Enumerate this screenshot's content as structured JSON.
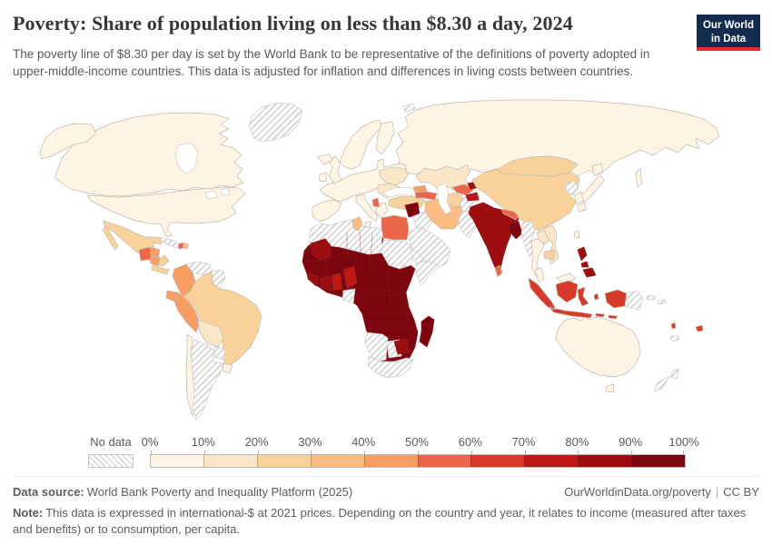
{
  "header": {
    "title": "Poverty: Share of population living on less than $8.30 a day, 2024",
    "subtitle": "The poverty line of $8.30 per day is set by the World Bank to be representative of the definitions of poverty adopted in upper-middle-income countries. This data is adjusted for inflation and differences in living costs between countries.",
    "logo": {
      "line1": "Our World",
      "line2": "in Data",
      "bg": "#132c4e",
      "accent": "#e2332b",
      "text_color": "#ffffff"
    }
  },
  "legend": {
    "no_data_label": "No data",
    "tick_labels": [
      "0%",
      "10%",
      "20%",
      "30%",
      "40%",
      "50%",
      "60%",
      "70%",
      "80%",
      "90%",
      "100%"
    ],
    "bin_labels": [
      "0-10%",
      "10-20%",
      "20-30%",
      "30-40%",
      "40-50%",
      "50-60%",
      "60-70%",
      "70-80%",
      "80-90%",
      "90-100%"
    ],
    "bin_colors": [
      "#FDF4E4",
      "#FAE7C8",
      "#F8D29A",
      "#FBBC84",
      "#F79C63",
      "#EB654A",
      "#D63A2B",
      "#BE1917",
      "#9C0D10",
      "#7D050F"
    ]
  },
  "map": {
    "ocean_color": "#ffffff",
    "border_color": "#c2b9b0",
    "dark_border": "#8a241e",
    "no_data_border": "#cccccc",
    "no_data_stripe_color": "#d8d8d8",
    "regions": {
      "greenland": {
        "label": "Greenland",
        "bin": "nd"
      },
      "canada": {
        "label": "Canada",
        "bin": 0
      },
      "united_states": {
        "label": "United States",
        "bin": 0
      },
      "mexico": {
        "label": "Mexico",
        "bin": 2
      },
      "guatemala": {
        "label": "Guatemala",
        "bin": 5
      },
      "honduras": {
        "label": "Honduras",
        "bin": 4
      },
      "nicaragua": {
        "label": "Nicaragua",
        "bin": 4
      },
      "costa_rica_panama": {
        "label": "Costa Rica & Panama",
        "bin": 2
      },
      "cuba": {
        "label": "Cuba",
        "bin": "nd"
      },
      "haiti": {
        "label": "Haiti",
        "bin": 5
      },
      "dominican_republic": {
        "label": "Dominican Republic",
        "bin": 3
      },
      "venezuela": {
        "label": "Venezuela",
        "bin": "nd"
      },
      "guyana_suriname": {
        "label": "Guyana & Suriname",
        "bin": "nd"
      },
      "colombia": {
        "label": "Colombia",
        "bin": 4
      },
      "ecuador": {
        "label": "Ecuador",
        "bin": 4
      },
      "peru": {
        "label": "Peru",
        "bin": 4
      },
      "brazil": {
        "label": "Brazil",
        "bin": 2
      },
      "bolivia": {
        "label": "Bolivia",
        "bin": 1
      },
      "paraguay": {
        "label": "Paraguay",
        "bin": "nd"
      },
      "chile": {
        "label": "Chile",
        "bin": 0
      },
      "argentina": {
        "label": "Argentina",
        "bin": "nd"
      },
      "uruguay": {
        "label": "Uruguay",
        "bin": 0
      },
      "iceland": {
        "label": "Iceland",
        "bin": 0
      },
      "united_kingdom": {
        "label": "United Kingdom",
        "bin": 0
      },
      "ireland": {
        "label": "Ireland",
        "bin": 0
      },
      "norway_sweden": {
        "label": "Norway & Sweden",
        "bin": 0
      },
      "finland": {
        "label": "Finland",
        "bin": 0
      },
      "western_europe": {
        "label": "Western & Central Europe",
        "bin": 0
      },
      "spain_portugal": {
        "label": "Spain & Portugal",
        "bin": 0
      },
      "italy": {
        "label": "Italy",
        "bin": 0
      },
      "greece": {
        "label": "Greece",
        "bin": 0
      },
      "ukraine": {
        "label": "Ukraine",
        "bin": 1
      },
      "romania_bulgaria": {
        "label": "Romania & Bulgaria",
        "bin": 1
      },
      "albania_north_macedonia": {
        "label": "Albania & North Macedonia",
        "bin": 5
      },
      "turkey": {
        "label": "Turkey",
        "bin": 2
      },
      "svalbard": {
        "label": "Svalbard",
        "bin": "nd"
      },
      "russia": {
        "label": "Russia",
        "bin": 0
      },
      "kazakhstan": {
        "label": "Kazakhstan",
        "bin": 1
      },
      "turkmenistan": {
        "label": "Turkmenistan",
        "bin": 2
      },
      "uzbekistan": {
        "label": "Uzbekistan",
        "bin": 5
      },
      "kyrgyzstan": {
        "label": "Kyrgyzstan",
        "bin": 8
      },
      "tajikistan": {
        "label": "Tajikistan",
        "bin": 7
      },
      "georgia": {
        "label": "Georgia",
        "bin": 4
      },
      "armenia_azerbaijan": {
        "label": "Armenia & Azerbaijan",
        "bin": 5
      },
      "syria": {
        "label": "Syria",
        "bin": 9
      },
      "iraq": {
        "label": "Iraq",
        "bin": "nd"
      },
      "jordan_israel": {
        "label": "Jordan, Israel & Lebanon",
        "bin": "nd"
      },
      "saudi_arabia": {
        "label": "Saudi Arabia, Yemen & Oman",
        "bin": "nd"
      },
      "iran": {
        "label": "Iran",
        "bin": 3
      },
      "afghanistan": {
        "label": "Afghanistan",
        "bin": "nd"
      },
      "pakistan": {
        "label": "Pakistan",
        "bin": "nd"
      },
      "north_africa": {
        "label": "Morocco, Algeria & Libya",
        "bin": "nd"
      },
      "tunisia": {
        "label": "Tunisia",
        "bin": 3
      },
      "egypt": {
        "label": "Egypt",
        "bin": 5
      },
      "sudan": {
        "label": "Sudan",
        "bin": "nd"
      },
      "eritrea_djibouti": {
        "label": "Eritrea & Djibouti",
        "bin": "nd"
      },
      "somalia": {
        "label": "Somalia",
        "bin": "nd"
      },
      "mauritania": {
        "label": "Mauritania",
        "bin": 8
      },
      "sub_saharan_africa": {
        "label": "Sahel, West, Central & East Africa (Mali, Niger, Chad, Nigeria, DR Congo, Ethiopia, Kenya, Tanzania, Angola, Zambia, Mozambique and neighbours)",
        "bin": 9
      },
      "sierra_leone_liberia": {
        "label": "Sierra Leone & Liberia",
        "bin": 8
      },
      "cote_divoire": {
        "label": "Côte d'Ivoire",
        "bin": 8
      },
      "ghana": {
        "label": "Ghana",
        "bin": 7
      },
      "cameroon": {
        "label": "Cameroon",
        "bin": 7
      },
      "gabon": {
        "label": "Gabon",
        "bin": "nd"
      },
      "zimbabwe": {
        "label": "Zimbabwe",
        "bin": 8
      },
      "namibia": {
        "label": "Namibia",
        "bin": "nd"
      },
      "botswana": {
        "label": "Botswana",
        "bin": "nd"
      },
      "south_africa": {
        "label": "South Africa",
        "bin": "nd"
      },
      "madagascar": {
        "label": "Madagascar",
        "bin": 9
      },
      "mongolia": {
        "label": "Mongolia",
        "bin": 2
      },
      "china": {
        "label": "China",
        "bin": 2
      },
      "india": {
        "label": "India",
        "bin": 8
      },
      "nepal": {
        "label": "Nepal",
        "bin": 5
      },
      "bangladesh": {
        "label": "Bangladesh",
        "bin": 9
      },
      "sri_lanka": {
        "label": "Sri Lanka",
        "bin": 5
      },
      "myanmar": {
        "label": "Myanmar",
        "bin": "nd"
      },
      "thailand": {
        "label": "Thailand",
        "bin": 0
      },
      "laos": {
        "label": "Laos",
        "bin": 1
      },
      "vietnam": {
        "label": "Vietnam",
        "bin": 1
      },
      "cambodia": {
        "label": "Cambodia",
        "bin": 2
      },
      "north_korea": {
        "label": "North Korea",
        "bin": "nd"
      },
      "south_korea": {
        "label": "South Korea",
        "bin": 0
      },
      "japan": {
        "label": "Japan",
        "bin": 0
      },
      "taiwan": {
        "label": "Taiwan",
        "bin": 0
      },
      "philippines": {
        "label": "Philippines",
        "bin": 8
      },
      "malaysia": {
        "label": "Malaysia",
        "bin": 0
      },
      "indonesia": {
        "label": "Indonesia",
        "bin": 6
      },
      "papua_new_guinea": {
        "label": "Papua New Guinea",
        "bin": "nd"
      },
      "solomon_islands": {
        "label": "Solomon Islands",
        "bin": "nd"
      },
      "vanuatu_fiji": {
        "label": "Vanuatu & Fiji",
        "bin": 6
      },
      "new_caledonia": {
        "label": "New Caledonia",
        "bin": "nd"
      },
      "australia": {
        "label": "Australia",
        "bin": 0
      },
      "new_zealand": {
        "label": "New Zealand",
        "bin": "nd"
      }
    }
  },
  "footer": {
    "data_source_label": "Data source:",
    "data_source_value": "World Bank Poverty and Inequality Platform (2025)",
    "link": "OurWorldinData.org/poverty",
    "separator": "|",
    "license": "CC BY",
    "note_label": "Note:",
    "note_text": "This data is expressed in international-$ at 2021 prices. Depending on the country and year, it relates to income (measured after taxes and benefits) or to consumption, per capita."
  },
  "chart_data": {
    "type": "heatmap",
    "variant": "choropleth_world_map",
    "title": "Poverty: Share of population living on less than $8.30 a day, 2024",
    "unit": "% of population living below $8.30/day",
    "year": 2024,
    "legend_position": "bottom",
    "bins": [
      "0-10%",
      "10-20%",
      "20-30%",
      "30-40%",
      "40-50%",
      "50-60%",
      "60-70%",
      "70-80%",
      "80-90%",
      "90-100%",
      "No data"
    ],
    "bin_colors": [
      "#FDF4E4",
      "#FAE7C8",
      "#F8D29A",
      "#FBBC84",
      "#F79C63",
      "#EB654A",
      "#D63A2B",
      "#BE1917",
      "#9C0D10",
      "#7D050F",
      "hatched"
    ],
    "values_by_country": {
      "United States": "0-10%",
      "Canada": "0-10%",
      "Greenland": "No data",
      "Mexico": "20-30%",
      "Guatemala": "50-60%",
      "Honduras": "40-50%",
      "Nicaragua": "40-50%",
      "Costa Rica": "20-30%",
      "Panama": "20-30%",
      "Cuba": "No data",
      "Haiti": "50-60%",
      "Dominican Republic": "30-40%",
      "Colombia": "40-50%",
      "Venezuela": "No data",
      "Guyana": "No data",
      "Suriname": "No data",
      "Ecuador": "40-50%",
      "Peru": "40-50%",
      "Brazil": "20-30%",
      "Bolivia": "10-20%",
      "Paraguay": "No data",
      "Chile": "0-10%",
      "Argentina": "No data",
      "Uruguay": "0-10%",
      "Iceland": "0-10%",
      "United Kingdom": "0-10%",
      "Ireland": "0-10%",
      "Norway": "0-10%",
      "Sweden": "0-10%",
      "Finland": "0-10%",
      "France": "0-10%",
      "Germany": "0-10%",
      "Poland": "0-10%",
      "Spain": "0-10%",
      "Portugal": "0-10%",
      "Italy": "0-10%",
      "Greece": "0-10%",
      "Ukraine": "10-20%",
      "Romania": "10-20%",
      "Bulgaria": "10-20%",
      "Albania": "50-60%",
      "North Macedonia": "50-60%",
      "Turkey": "20-30%",
      "Russia": "0-10%",
      "Kazakhstan": "10-20%",
      "Turkmenistan": "20-30%",
      "Uzbekistan": "50-60%",
      "Kyrgyzstan": "80-90%",
      "Tajikistan": "70-80%",
      "Georgia": "40-50%",
      "Armenia": "50-60%",
      "Azerbaijan": "50-60%",
      "Syria": "90-100%",
      "Iraq": "No data",
      "Jordan": "No data",
      "Israel": "No data",
      "Saudi Arabia": "No data",
      "Yemen": "No data",
      "Oman": "No data",
      "Iran": "30-40%",
      "Afghanistan": "No data",
      "Pakistan": "No data",
      "Morocco": "No data",
      "Algeria": "No data",
      "Libya": "No data",
      "Tunisia": "30-40%",
      "Egypt": "50-60%",
      "Sudan": "No data",
      "Eritrea": "No data",
      "Somalia": "No data",
      "Mauritania": "80-90%",
      "Mali": "90-100%",
      "Niger": "90-100%",
      "Chad": "90-100%",
      "Senegal": "90-100%",
      "Guinea": "90-100%",
      "Sierra Leone": "80-90%",
      "Liberia": "80-90%",
      "Côte d'Ivoire": "80-90%",
      "Ghana": "70-80%",
      "Togo": "90-100%",
      "Benin": "90-100%",
      "Nigeria": "90-100%",
      "Cameroon": "70-80%",
      "Central African Republic": "90-100%",
      "Ethiopia": "90-100%",
      "Kenya": "90-100%",
      "Uganda": "90-100%",
      "Democratic Republic of Congo": "90-100%",
      "Republic of the Congo": "90-100%",
      "Gabon": "No data",
      "Tanzania": "90-100%",
      "Angola": "90-100%",
      "Zambia": "90-100%",
      "Malawi": "90-100%",
      "Mozambique": "90-100%",
      "Zimbabwe": "80-90%",
      "Namibia": "No data",
      "Botswana": "No data",
      "South Africa": "No data",
      "Madagascar": "90-100%",
      "Mongolia": "20-30%",
      "China": "20-30%",
      "India": "80-90%",
      "Nepal": "50-60%",
      "Bangladesh": "90-100%",
      "Sri Lanka": "50-60%",
      "Myanmar": "No data",
      "Thailand": "0-10%",
      "Laos": "10-20%",
      "Vietnam": "10-20%",
      "Cambodia": "20-30%",
      "North Korea": "No data",
      "South Korea": "0-10%",
      "Japan": "0-10%",
      "Taiwan": "0-10%",
      "Philippines": "80-90%",
      "Malaysia": "0-10%",
      "Indonesia": "60-70%",
      "Papua New Guinea": "No data",
      "Solomon Islands": "No data",
      "Vanuatu": "60-70%",
      "Fiji": "60-70%",
      "New Caledonia": "No data",
      "Australia": "0-10%",
      "New Zealand": "No data"
    }
  }
}
